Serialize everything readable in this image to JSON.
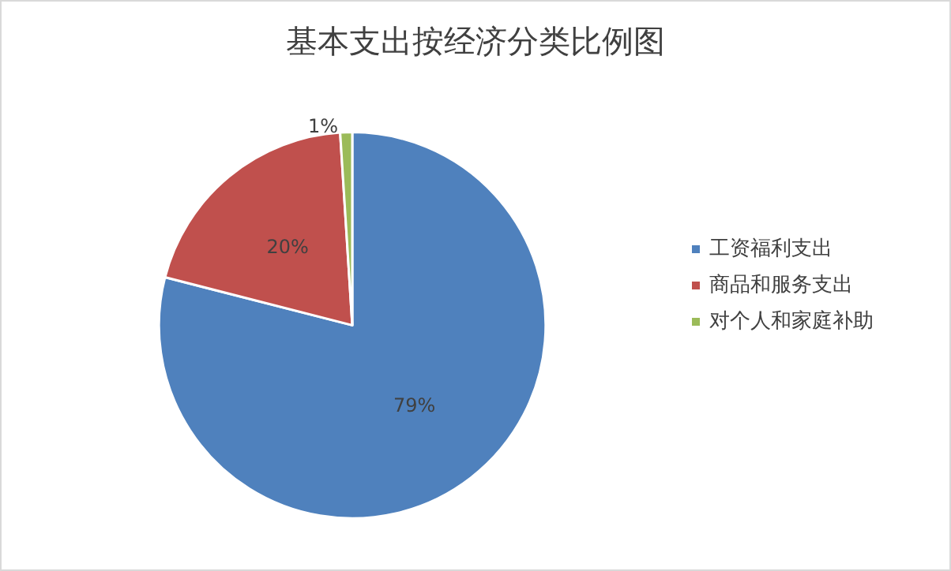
{
  "chart_data": {
    "type": "pie",
    "title": "基本支出按经济分类比例图",
    "categories": [
      "工资福利支出",
      "商品和服务支出",
      "对个人和家庭补助"
    ],
    "values": [
      79,
      20,
      1
    ],
    "colors": [
      "#4f81bd",
      "#c0504d",
      "#9bbb59"
    ],
    "value_labels": [
      "79%",
      "20%",
      "1%"
    ],
    "legend": "right"
  }
}
